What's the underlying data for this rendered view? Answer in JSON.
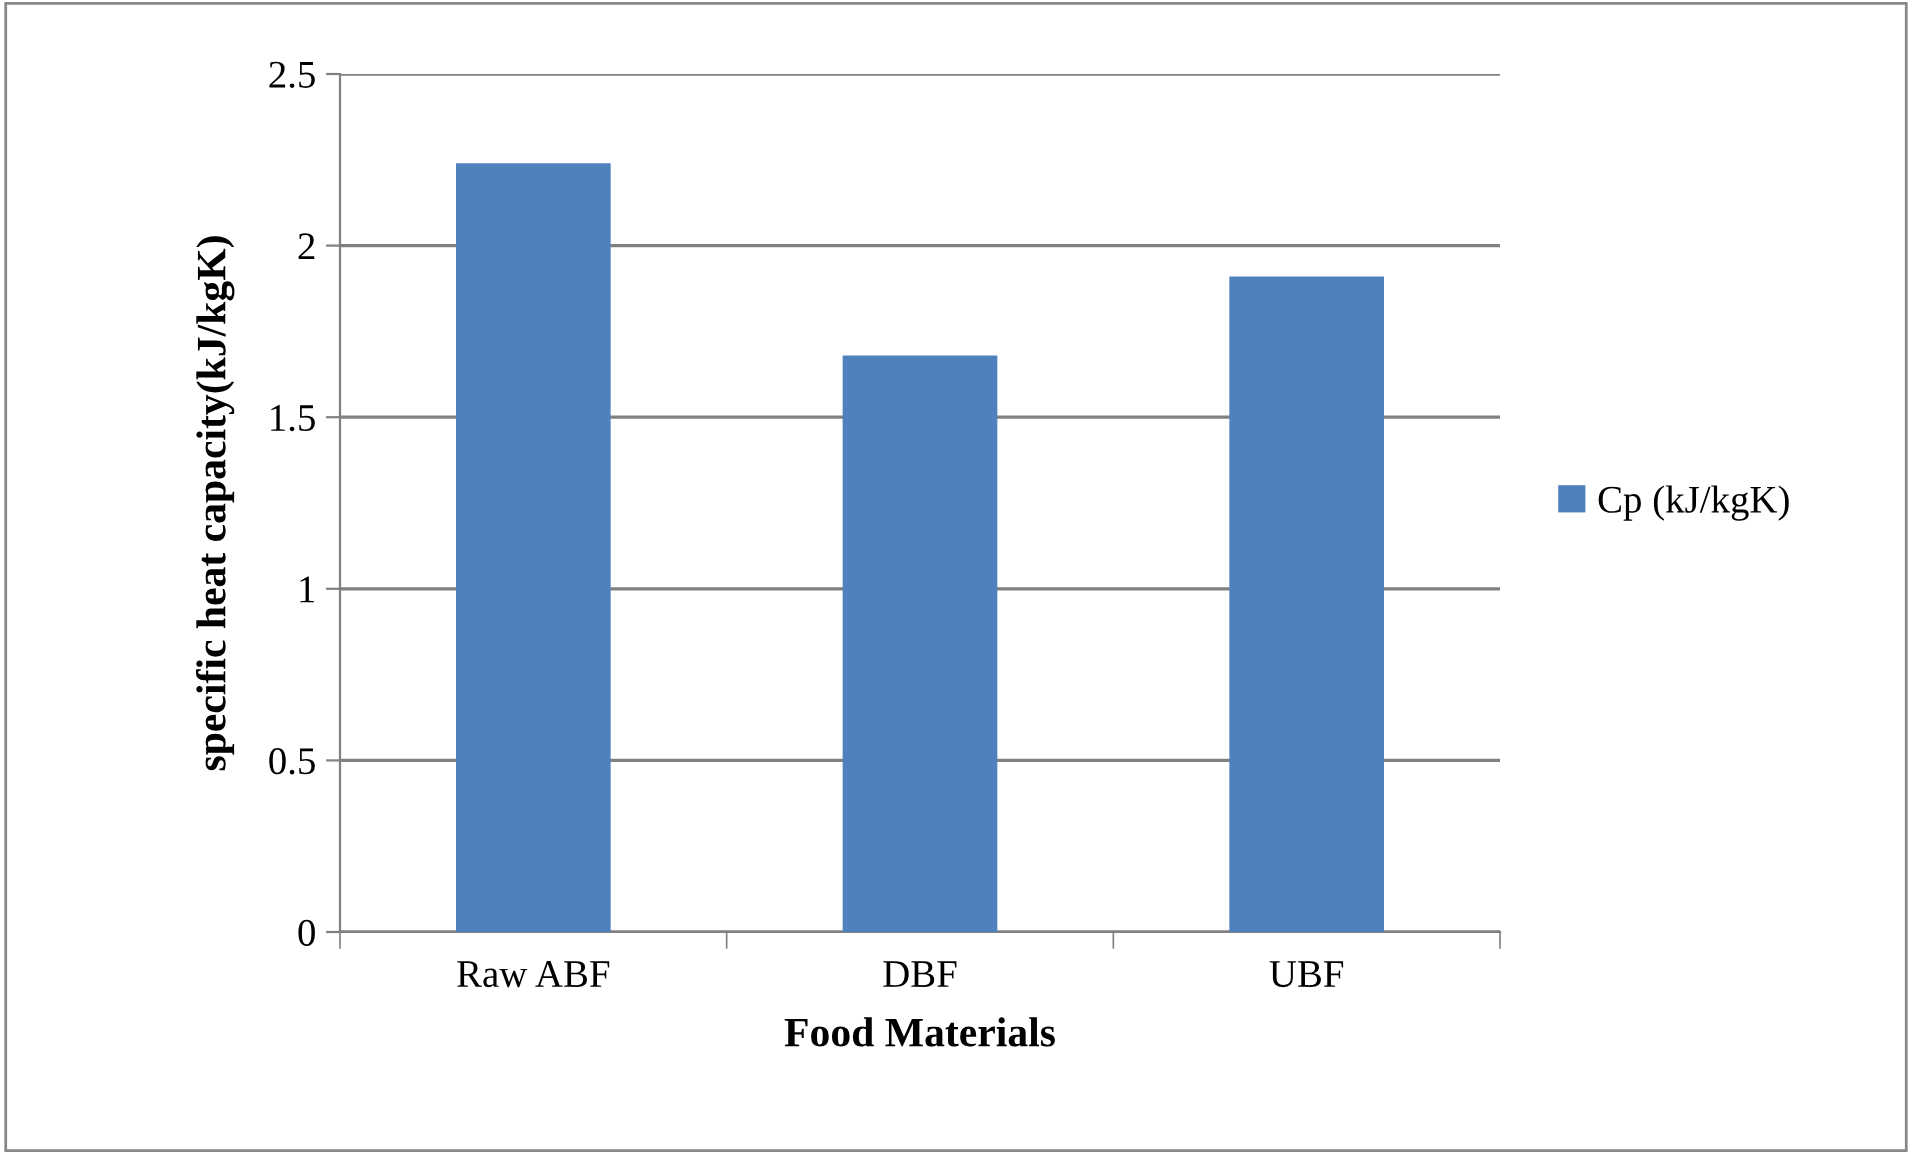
{
  "chart_data": {
    "type": "bar",
    "xlabel": "Food Materials",
    "ylabel": "specific heat capacity(kJ/kgK)",
    "categories": [
      "Raw ABF",
      "DBF",
      "UBF"
    ],
    "series": [
      {
        "name": "Cp (kJ/kgK)",
        "color": "#4f81bd",
        "values": [
          2.24,
          1.68,
          1.91
        ]
      }
    ],
    "ylim": [
      0,
      2.5
    ],
    "yticks": [
      0,
      0.5,
      1,
      1.5,
      2,
      2.5
    ],
    "grid": "y",
    "legend": "right"
  }
}
